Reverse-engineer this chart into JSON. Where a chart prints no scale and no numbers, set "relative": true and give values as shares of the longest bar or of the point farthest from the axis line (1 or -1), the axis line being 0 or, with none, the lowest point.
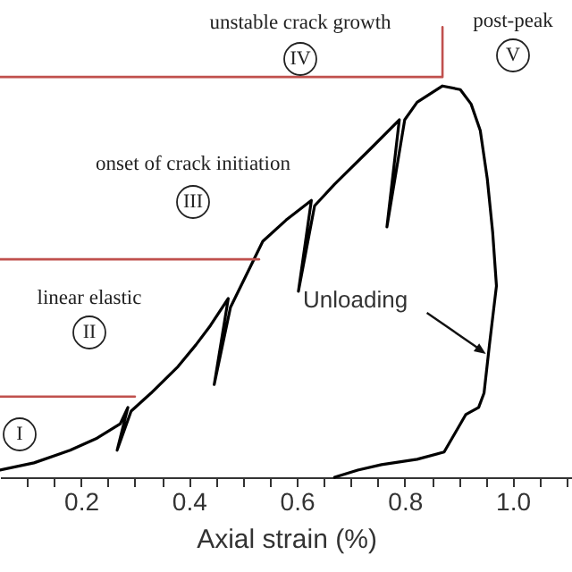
{
  "chart_data": {
    "type": "line",
    "xlabel": "Axial strain (%)",
    "relative": true,
    "grid": false,
    "marker": "none",
    "line_style": "solid",
    "xlim": [
      0.05,
      1.11
    ],
    "xticks": [
      {
        "value": 0.1,
        "label": null
      },
      {
        "value": 0.15,
        "label": null
      },
      0.2,
      {
        "value": 0.25,
        "label": null
      },
      {
        "value": 0.3,
        "label": null
      },
      {
        "value": 0.35,
        "label": null
      },
      0.4,
      {
        "value": 0.45,
        "label": null
      },
      {
        "value": 0.5,
        "label": null
      },
      {
        "value": 0.55,
        "label": null
      },
      0.6,
      {
        "value": 0.65,
        "label": null
      },
      {
        "value": 0.7,
        "label": null
      },
      {
        "value": 0.75,
        "label": null
      },
      0.8,
      {
        "value": 0.85,
        "label": null
      },
      {
        "value": 0.9,
        "label": null
      },
      {
        "value": 0.95,
        "label": null
      },
      {
        "value": 1.0,
        "label": "1.0"
      },
      {
        "value": 1.05,
        "label": null
      },
      {
        "value": 1.1,
        "label": null
      }
    ],
    "series": [
      {
        "color": "#000000",
        "x": [
          0.05,
          0.113,
          0.18,
          0.23,
          0.273,
          0.287,
          0.267,
          0.293,
          0.33,
          0.38,
          0.413,
          0.44,
          0.473,
          0.447,
          0.477,
          0.537,
          0.58,
          0.627,
          0.603,
          0.633,
          0.67,
          0.737,
          0.79,
          0.767,
          0.8,
          0.823,
          0.87,
          0.903,
          0.923,
          0.94,
          0.953,
          0.963,
          0.97,
          0.957,
          0.947,
          0.937,
          0.913,
          0.873,
          0.823,
          0.757,
          0.713,
          0.67
        ],
        "values": [
          0.016,
          0.032,
          0.06,
          0.087,
          0.119,
          0.155,
          0.06,
          0.147,
          0.187,
          0.246,
          0.294,
          0.337,
          0.397,
          0.206,
          0.377,
          0.524,
          0.571,
          0.615,
          0.413,
          0.603,
          0.651,
          0.73,
          0.794,
          0.556,
          0.794,
          0.833,
          0.869,
          0.861,
          0.829,
          0.77,
          0.663,
          0.544,
          0.425,
          0.294,
          0.187,
          0.155,
          0.139,
          0.056,
          0.04,
          0.028,
          0.016,
          0
        ]
      },
      {
        "color": "#c0504d",
        "x": [
          0.05,
          0.3
        ],
        "values": [
          0.179,
          0.179
        ]
      },
      {
        "color": "#c0504d",
        "x": [
          0.05,
          0.53
        ],
        "values": [
          0.484,
          0.484
        ]
      },
      {
        "color": "#c0504d",
        "x": [
          0.05,
          0.87,
          0.87
        ],
        "values": [
          0.889,
          0.889,
          1
        ]
      }
    ],
    "annotations": [
      "unstable crack growth",
      "IV",
      "post-peak",
      "V",
      "onset of crack initiation",
      "III",
      "linear elastic",
      "II",
      "I",
      {
        "text": "Unloading",
        "x": 0.957,
        "y": 0.266
      }
    ]
  }
}
